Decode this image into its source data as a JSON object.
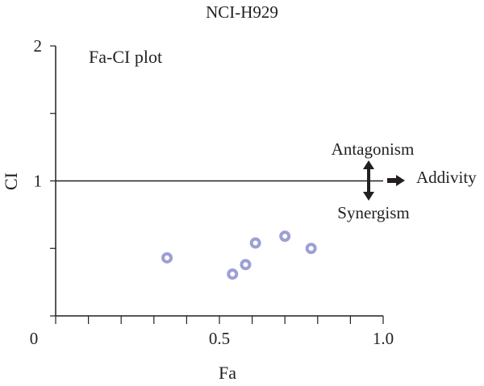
{
  "chart_data": {
    "type": "scatter",
    "title": "NCI-H929",
    "subtitle": "Fa-CI plot",
    "xlabel": "Fa",
    "ylabel": "CI",
    "xlim": [
      0,
      1.0
    ],
    "ylim": [
      0,
      2
    ],
    "x_ticks": [
      0,
      0.5,
      1.0
    ],
    "x_tick_labels": [
      "0",
      "0.5",
      "1.0"
    ],
    "x_minor_step": 0.1,
    "y_ticks": [
      1,
      2
    ],
    "y_tick_labels": [
      "1",
      "2"
    ],
    "y_minor_step": 0.5,
    "reference_line": {
      "y": 1
    },
    "grid": false,
    "series": [
      {
        "color": "#9da0d4",
        "points": [
          {
            "x": 0.34,
            "y": 0.43
          },
          {
            "x": 0.54,
            "y": 0.31
          },
          {
            "x": 0.58,
            "y": 0.38
          },
          {
            "x": 0.61,
            "y": 0.54
          },
          {
            "x": 0.7,
            "y": 0.59
          },
          {
            "x": 0.78,
            "y": 0.5
          }
        ]
      }
    ],
    "annotations": {
      "antagonism": "Antagonism",
      "synergism": "Synergism",
      "addivity": "Addivity"
    }
  },
  "colors": {
    "axis": "#231f20",
    "point": "#9da0d4"
  }
}
